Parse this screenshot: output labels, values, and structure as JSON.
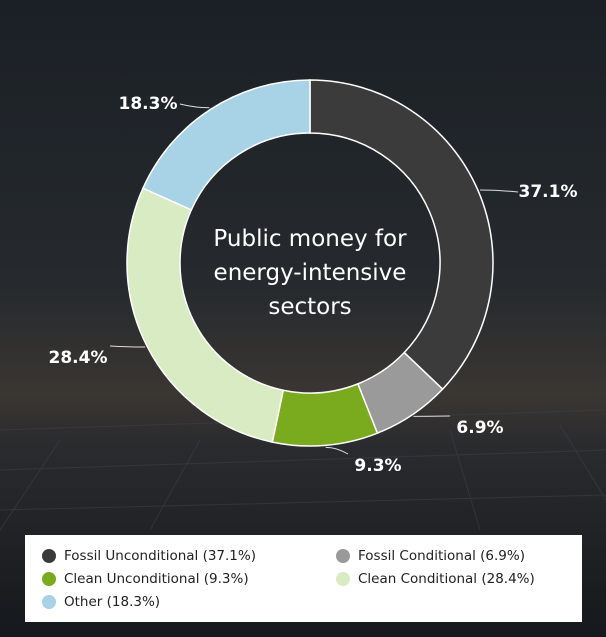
{
  "chart_data": {
    "type": "pie",
    "donut": true,
    "title": "Public money for energy-intensive sectors",
    "categories": [
      "Fossil Unconditional (37.1%)",
      "Fossil Conditional (6.9%)",
      "Clean Unconditional (9.3%)",
      "Clean Conditional (28.4%)",
      "Other (18.3%)"
    ],
    "values": [
      37.1,
      6.9,
      9.3,
      28.4,
      18.3
    ],
    "value_labels": [
      "37.1%",
      "6.9%",
      "9.3%",
      "28.4%",
      "18.3%"
    ],
    "colors": [
      "#3b3b3b",
      "#9a9a9a",
      "#7aaa1e",
      "#d9ebc3",
      "#a8d2e6"
    ]
  }
}
